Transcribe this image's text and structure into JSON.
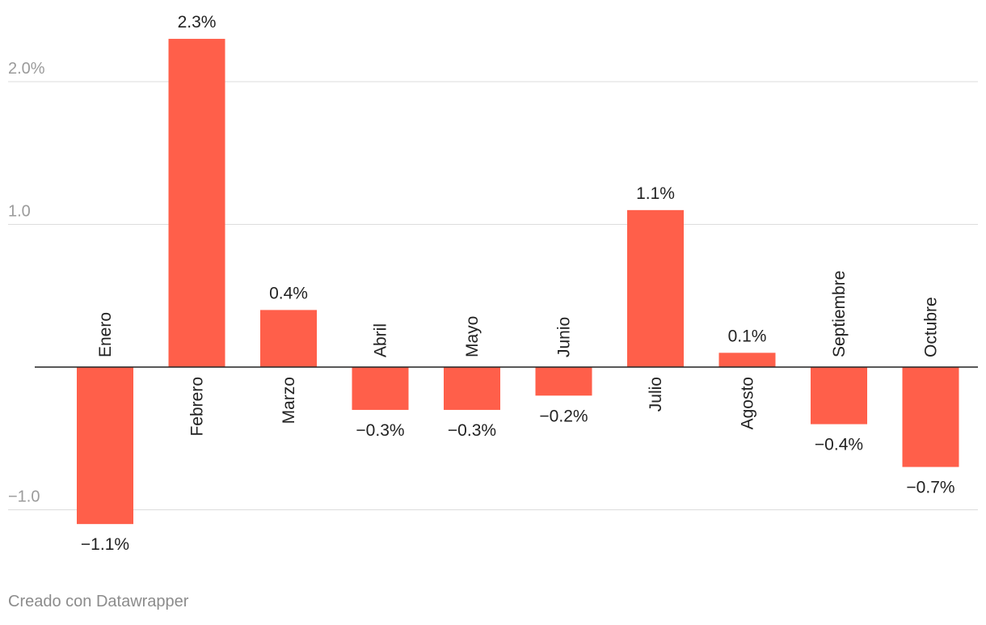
{
  "chart_data": {
    "type": "bar",
    "title": "",
    "xlabel": "",
    "ylabel": "",
    "categories": [
      "Enero",
      "Febrero",
      "Marzo",
      "Abril",
      "Mayo",
      "Junio",
      "Julio",
      "Agosto",
      "Septiembre",
      "Octubre"
    ],
    "values": [
      -1.1,
      2.3,
      0.4,
      -0.3,
      -0.3,
      -0.2,
      1.1,
      0.1,
      -0.4,
      -0.7
    ],
    "value_labels": [
      "−1.1%",
      "2.3%",
      "0.4%",
      "−0.3%",
      "−0.3%",
      "−0.2%",
      "1.1%",
      "0.1%",
      "−0.4%",
      "−0.7%"
    ],
    "yticks": [
      -1,
      1,
      2
    ],
    "ytick_labels": [
      "−1.0",
      "1.0",
      "2.0%"
    ],
    "ylim": [
      -1.3,
      2.6
    ],
    "grid": true,
    "legend": "none",
    "bar_color": "#ff5f4a"
  },
  "footer": {
    "credit": "Creado con Datawrapper"
  }
}
